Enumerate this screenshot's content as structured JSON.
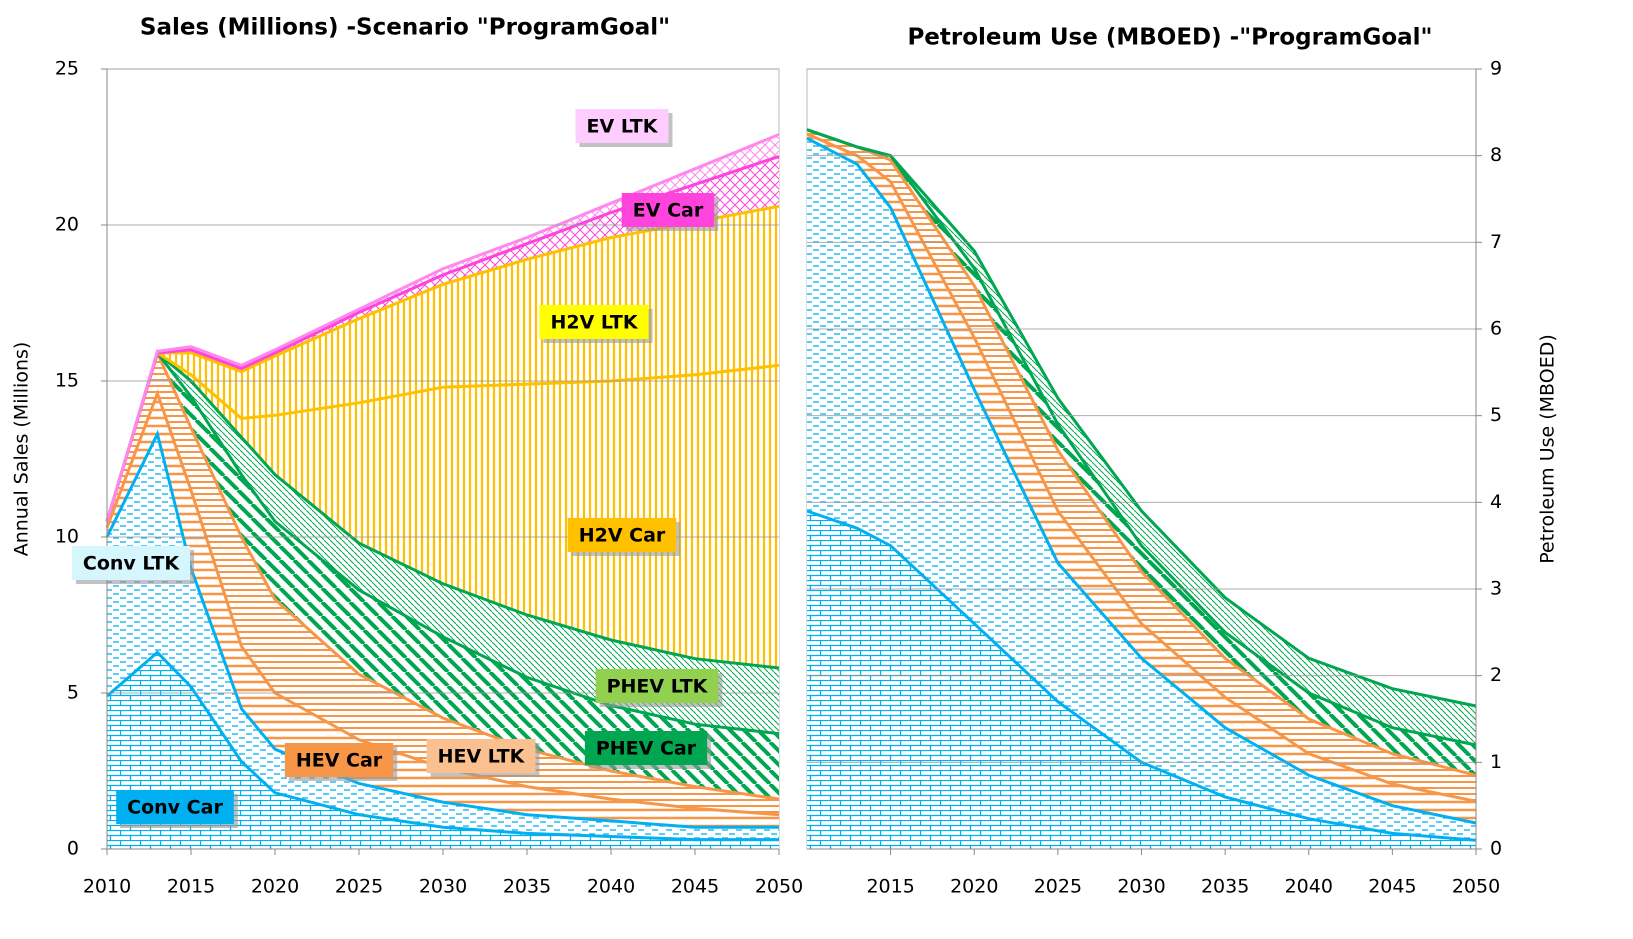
{
  "chart_data": [
    {
      "type": "stacked_area",
      "title": "Sales (Millions) -Scenario \"ProgramGoal\"",
      "y_label": "Annual Sales (Millions)",
      "x": [
        2010,
        2013,
        2015,
        2018,
        2020,
        2025,
        2030,
        2035,
        2040,
        2045,
        2050
      ],
      "xlim": [
        2010,
        2050
      ],
      "xticks": [
        2010,
        2015,
        2020,
        2025,
        2030,
        2035,
        2040,
        2045,
        2050
      ],
      "ylim": [
        0,
        25
      ],
      "yticks": [
        0,
        5,
        10,
        15,
        20,
        25
      ],
      "grid": true,
      "series": [
        {
          "name": "Conv Car",
          "color": "#00b0f0",
          "label_color": "#00b0f0",
          "values": [
            4.9,
            6.3,
            5.2,
            2.8,
            1.8,
            1.1,
            0.7,
            0.5,
            0.4,
            0.3,
            0.3
          ]
        },
        {
          "name": "Conv LTK",
          "color": "#00b0f0",
          "label_color": "#d6f6fd",
          "values": [
            5.1,
            7.0,
            3.8,
            1.7,
            1.4,
            1.0,
            0.8,
            0.6,
            0.5,
            0.4,
            0.4
          ]
        },
        {
          "name": "HEV Car",
          "color": "#f79646",
          "label_color": "#f79646",
          "values": [
            0.3,
            1.3,
            2.5,
            2.0,
            1.8,
            1.4,
            1.1,
            0.9,
            0.7,
            0.6,
            0.4
          ]
        },
        {
          "name": "HEV LTK",
          "color": "#f79646",
          "label_color": "#fac08f",
          "values": [
            0.2,
            1.3,
            2.0,
            3.5,
            3.0,
            2.1,
            1.6,
            1.2,
            0.9,
            0.7,
            0.5
          ]
        },
        {
          "name": "PHEV Car",
          "color": "#00a650",
          "label_color": "#00a650",
          "values": [
            0,
            0,
            1.0,
            2.0,
            2.5,
            2.7,
            2.6,
            2.3,
            2.1,
            2.0,
            2.1
          ]
        },
        {
          "name": "PHEV LTK",
          "color": "#00a650",
          "label_color": "#92d050",
          "values": [
            0,
            0,
            0.5,
            1.2,
            1.5,
            1.5,
            1.7,
            2.0,
            2.1,
            2.1,
            2.1
          ]
        },
        {
          "name": "H2V Car",
          "color": "#ffc000",
          "label_color": "#ffc000",
          "values": [
            0,
            0,
            0.2,
            0.6,
            1.9,
            4.5,
            6.3,
            7.4,
            8.3,
            9.1,
            9.7
          ]
        },
        {
          "name": "H2V LTK",
          "color": "#ffc000",
          "label_color": "#ffff00",
          "values": [
            0,
            0,
            0.7,
            1.5,
            1.9,
            2.7,
            3.3,
            4.0,
            4.6,
            4.9,
            5.1
          ]
        },
        {
          "name": "EV Car",
          "color": "#ff44dd",
          "label_color": "#ff44dd",
          "values": [
            0,
            0,
            0.1,
            0.1,
            0.1,
            0.2,
            0.3,
            0.5,
            0.8,
            1.2,
            1.6
          ]
        },
        {
          "name": "EV LTK",
          "color": "#ff88ee",
          "label_color": "#ffccff",
          "values": [
            0,
            0.05,
            0.1,
            0.1,
            0.1,
            0.1,
            0.2,
            0.2,
            0.3,
            0.5,
            0.7
          ]
        }
      ]
    },
    {
      "type": "stacked_area",
      "title": "Petroleum Use (MBOED) -\"ProgramGoal\"",
      "y_label": "Petroleum Use (MBOED)",
      "y_side": "right",
      "x": [
        2010,
        2013,
        2015,
        2020,
        2025,
        2030,
        2035,
        2040,
        2045,
        2050
      ],
      "xlim": [
        2010,
        2050
      ],
      "xticks": [
        2015,
        2020,
        2025,
        2030,
        2035,
        2040,
        2045,
        2050
      ],
      "ylim": [
        0,
        9
      ],
      "yticks": [
        0,
        1,
        2,
        3,
        4,
        5,
        6,
        7,
        8,
        9
      ],
      "grid": true,
      "series": [
        {
          "color": "#00b0f0",
          "values": [
            3.9,
            3.7,
            3.5,
            2.6,
            1.7,
            1.0,
            0.6,
            0.35,
            0.18,
            0.1
          ]
        },
        {
          "color": "#00b0f0",
          "values": [
            4.3,
            4.2,
            3.9,
            2.7,
            1.6,
            1.2,
            0.8,
            0.5,
            0.32,
            0.2
          ]
        },
        {
          "color": "#f79646",
          "values": [
            0.05,
            0.1,
            0.3,
            0.6,
            0.6,
            0.4,
            0.35,
            0.25,
            0.25,
            0.25
          ]
        },
        {
          "color": "#f79646",
          "values": [
            0.05,
            0.1,
            0.25,
            0.6,
            0.7,
            0.6,
            0.45,
            0.4,
            0.35,
            0.3
          ]
        },
        {
          "color": "#00a650",
          "values": [
            0,
            0,
            0.05,
            0.2,
            0.3,
            0.3,
            0.3,
            0.3,
            0.3,
            0.35
          ]
        },
        {
          "color": "#00a650",
          "values": [
            0,
            0,
            0,
            0.2,
            0.3,
            0.4,
            0.4,
            0.4,
            0.45,
            0.45
          ]
        }
      ]
    }
  ]
}
